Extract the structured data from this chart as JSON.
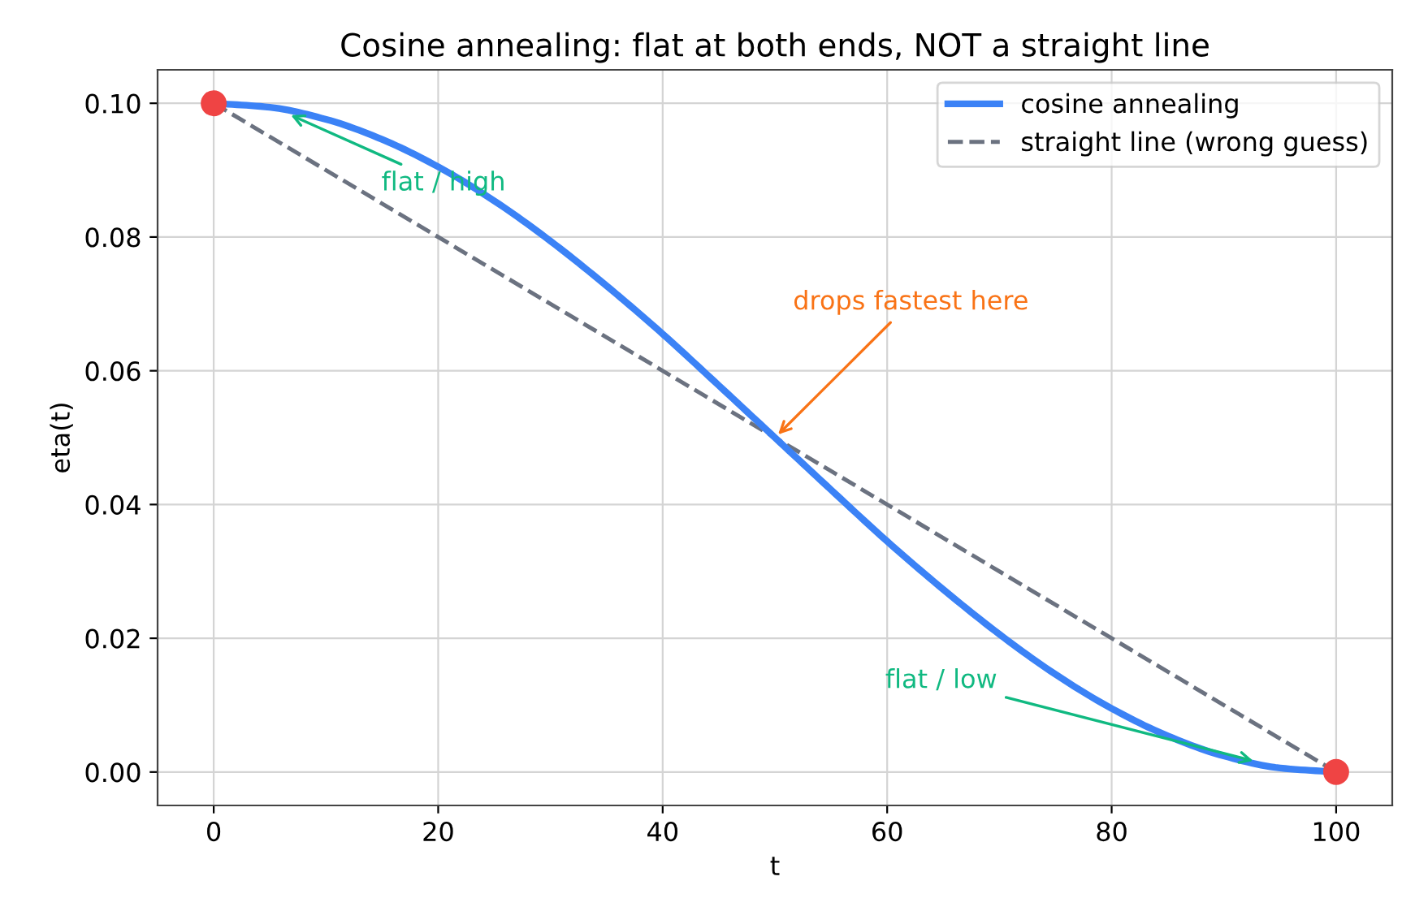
{
  "chart_data": {
    "type": "line",
    "title": "Cosine annealing: flat at both ends, NOT a straight line",
    "xlabel": "t",
    "ylabel": "eta(t)",
    "series": [
      {
        "name": "cosine annealing",
        "color": "#3b82f6",
        "line_style": "solid",
        "x": [
          0,
          5,
          10,
          15,
          20,
          25,
          30,
          35,
          40,
          45,
          50,
          55,
          60,
          65,
          70,
          75,
          80,
          85,
          90,
          95,
          100
        ],
        "values": [
          0.1,
          0.0994,
          0.0976,
          0.0946,
          0.0905,
          0.0854,
          0.0794,
          0.0727,
          0.0655,
          0.0578,
          0.05,
          0.0422,
          0.0345,
          0.0273,
          0.0206,
          0.0146,
          0.0095,
          0.0054,
          0.0024,
          0.0006,
          0
        ]
      },
      {
        "name": "straight line (wrong guess)",
        "color": "#6b7280",
        "line_style": "dashed",
        "x": [
          0,
          100
        ],
        "values": [
          0.1,
          0
        ]
      },
      {
        "type": "scatter",
        "color": "#ef4444",
        "marker": "circle",
        "x": [
          0,
          100
        ],
        "values": [
          0.1,
          0
        ]
      }
    ],
    "annotations": [
      {
        "text": "flat / high",
        "x": 6.5,
        "y": 0.0985
      },
      {
        "text": "drops fastest here",
        "x": 50,
        "y": 0.05
      },
      {
        "text": "flat / low",
        "x": 93,
        "y": 0.0015
      }
    ],
    "xlim": [
      -5,
      105
    ],
    "xticks": [
      0,
      20,
      40,
      60,
      80,
      100
    ],
    "ylim": [
      -0.005,
      0.105
    ],
    "yticks": [
      {
        "value": 0,
        "label": "0.00"
      },
      {
        "value": 0.02,
        "label": "0.02"
      },
      {
        "value": 0.04,
        "label": "0.04"
      },
      {
        "value": 0.06,
        "label": "0.06"
      },
      {
        "value": 0.08,
        "label": "0.08"
      },
      {
        "value": 0.1,
        "label": "0.10"
      }
    ],
    "grid": true,
    "legend": "top right"
  }
}
